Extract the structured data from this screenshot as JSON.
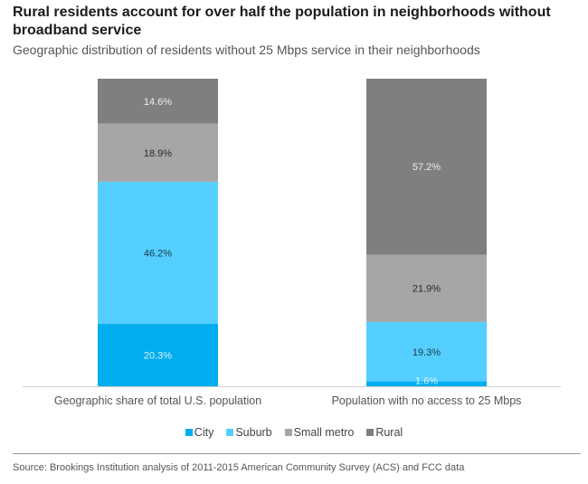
{
  "chart_data": {
    "type": "bar",
    "stacked": true,
    "title": "Rural residents account for over half the population in neighborhoods without broadband service",
    "subtitle": "Geographic distribution of residents without 25 Mbps service in their neighborhoods",
    "categories": [
      "Geographic share of total U.S. population",
      "Population with no access to 25 Mbps"
    ],
    "series": [
      {
        "name": "City",
        "color": "#00AEEF",
        "label_color": "#d8f4ff",
        "values": [
          20.3,
          1.6
        ],
        "labels": [
          "20.3%",
          "1.6%"
        ]
      },
      {
        "name": "Suburb",
        "color": "#55CFFF",
        "label_color": "#1a3a4a",
        "values": [
          46.2,
          19.3
        ],
        "labels": [
          "46.2%",
          "19.3%"
        ]
      },
      {
        "name": "Small metro",
        "color": "#A6A6A6",
        "label_color": "#2a2a2a",
        "values": [
          18.9,
          21.9
        ],
        "labels": [
          "18.9%",
          "21.9%"
        ]
      },
      {
        "name": "Rural",
        "color": "#7F7F7F",
        "label_color": "#eeeeee",
        "values": [
          14.6,
          57.2
        ],
        "labels": [
          "14.6%",
          "57.2%"
        ]
      }
    ],
    "xlabel": "",
    "ylabel": "",
    "ylim": [
      0,
      100
    ],
    "grid": false,
    "legend_position": "bottom"
  },
  "source": "Source: Brookings Institution analysis of 2011-2015 American Community Survey (ACS) and FCC data"
}
